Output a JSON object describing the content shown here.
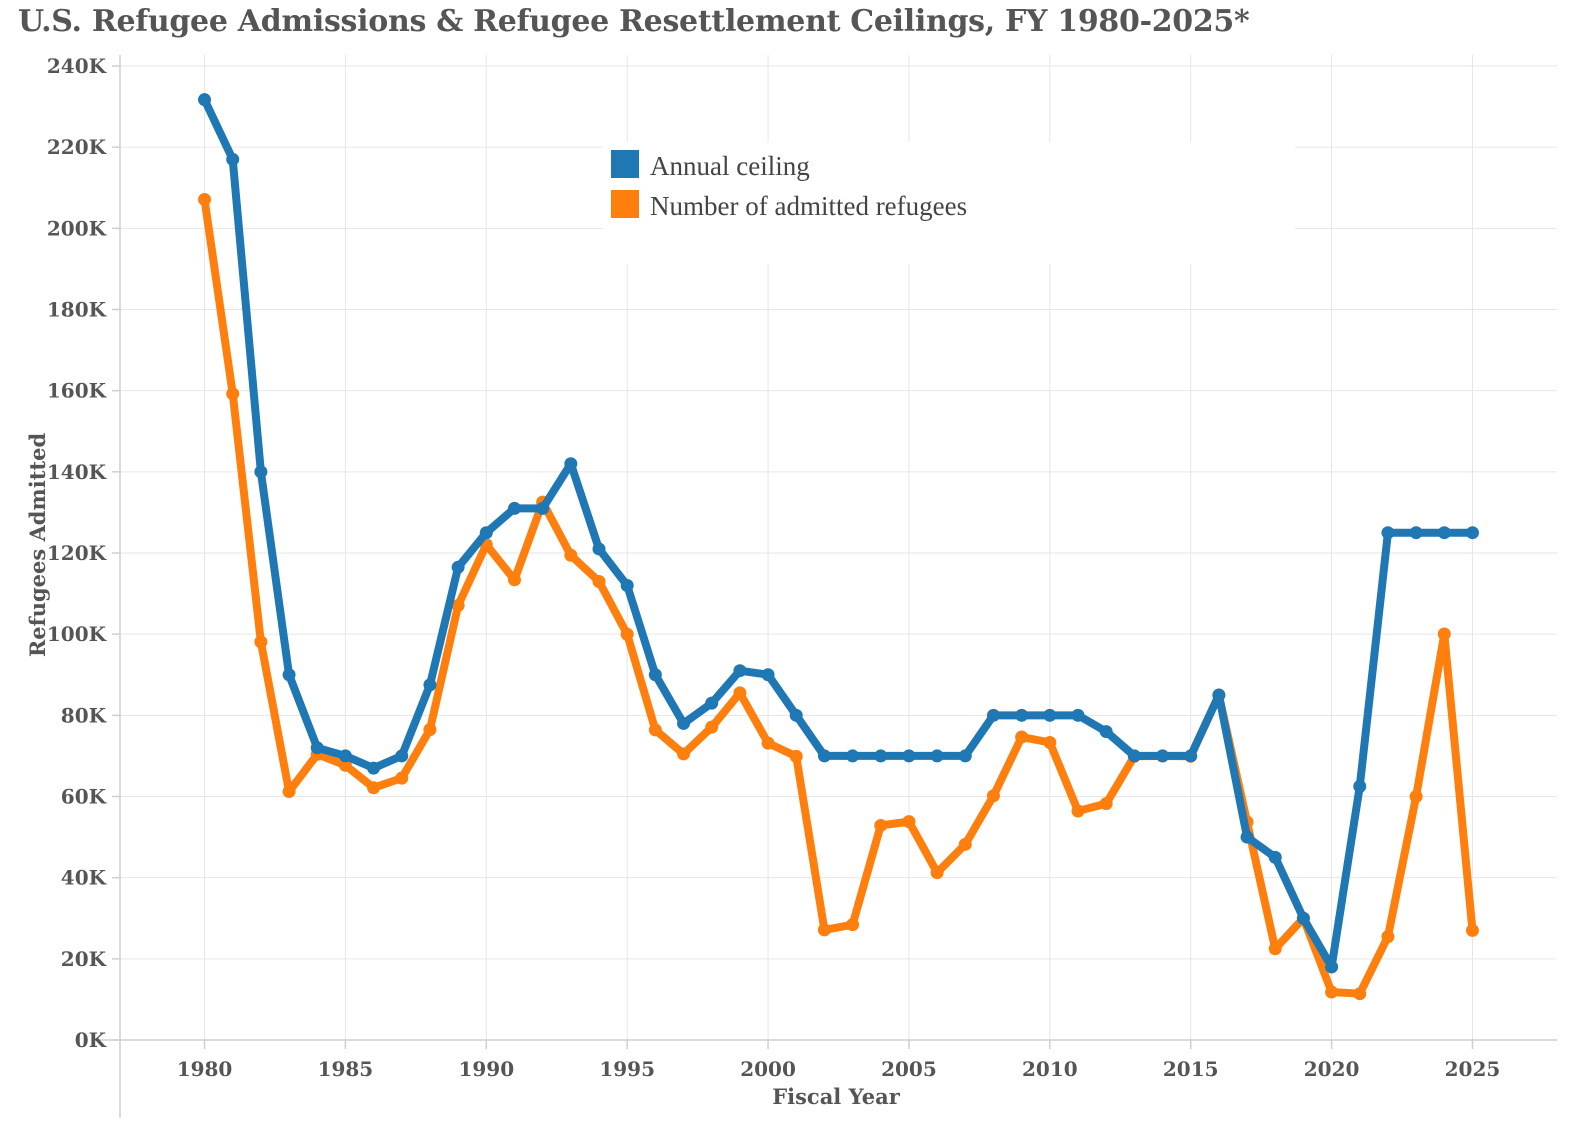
{
  "chart_data": {
    "type": "line",
    "title": "U.S. Refugee Admissions & Refugee Resettlement Ceilings, FY 1980-2025*",
    "xlabel": "Fiscal Year",
    "ylabel": "Refugees Admitted",
    "xlim": [
      1977,
      2028
    ],
    "ylim": [
      0,
      240000
    ],
    "grid": true,
    "legend_position": "top-center",
    "x_ticks": [
      1980,
      1985,
      1990,
      1995,
      2000,
      2005,
      2010,
      2015,
      2020,
      2025
    ],
    "y_ticks": [
      {
        "value": 0,
        "label": "0K"
      },
      {
        "value": 20000,
        "label": "20K"
      },
      {
        "value": 40000,
        "label": "40K"
      },
      {
        "value": 60000,
        "label": "60K"
      },
      {
        "value": 80000,
        "label": "80K"
      },
      {
        "value": 100000,
        "label": "100K"
      },
      {
        "value": 120000,
        "label": "120K"
      },
      {
        "value": 140000,
        "label": "140K"
      },
      {
        "value": 160000,
        "label": "160K"
      },
      {
        "value": 180000,
        "label": "180K"
      },
      {
        "value": 200000,
        "label": "200K"
      },
      {
        "value": 220000,
        "label": "220K"
      },
      {
        "value": 240000,
        "label": "240K"
      }
    ],
    "x": [
      1980,
      1981,
      1982,
      1983,
      1984,
      1985,
      1986,
      1987,
      1988,
      1989,
      1990,
      1991,
      1992,
      1993,
      1994,
      1995,
      1996,
      1997,
      1998,
      1999,
      2000,
      2001,
      2002,
      2003,
      2004,
      2005,
      2006,
      2007,
      2008,
      2009,
      2010,
      2011,
      2012,
      2013,
      2014,
      2015,
      2016,
      2017,
      2018,
      2019,
      2020,
      2021,
      2022,
      2023,
      2024,
      2025
    ],
    "series": [
      {
        "name": "Number of admitted refugees",
        "color": "#ff7f0e",
        "values": [
          207116,
          159252,
          98096,
          61218,
          70393,
          67704,
          62146,
          64528,
          76483,
          107070,
          122066,
          113389,
          132531,
          119448,
          112981,
          99974,
          76403,
          70488,
          77080,
          85525,
          73147,
          69886,
          27131,
          28422,
          52868,
          53813,
          41223,
          48218,
          60191,
          74654,
          73311,
          56424,
          58238,
          69926,
          69987,
          69933,
          84994,
          53716,
          22491,
          30000,
          11814,
          11411,
          25465,
          60014,
          100034,
          27000
        ]
      },
      {
        "name": "Annual ceiling",
        "color": "#1f77b4",
        "values": [
          231700,
          217000,
          140000,
          90000,
          72000,
          70000,
          67000,
          70000,
          87500,
          116500,
          125000,
          131000,
          131000,
          142000,
          121000,
          112000,
          90000,
          78000,
          83000,
          91000,
          90000,
          80000,
          70000,
          70000,
          70000,
          70000,
          70000,
          70000,
          80000,
          80000,
          80000,
          80000,
          76000,
          70000,
          70000,
          70000,
          85000,
          50000,
          45000,
          30000,
          18000,
          62500,
          125000,
          125000,
          125000,
          125000
        ]
      }
    ],
    "legend": [
      {
        "label": "Annual ceiling",
        "color": "#1f77b4"
      },
      {
        "label": "Number of admitted refugees",
        "color": "#ff7f0e"
      }
    ]
  }
}
